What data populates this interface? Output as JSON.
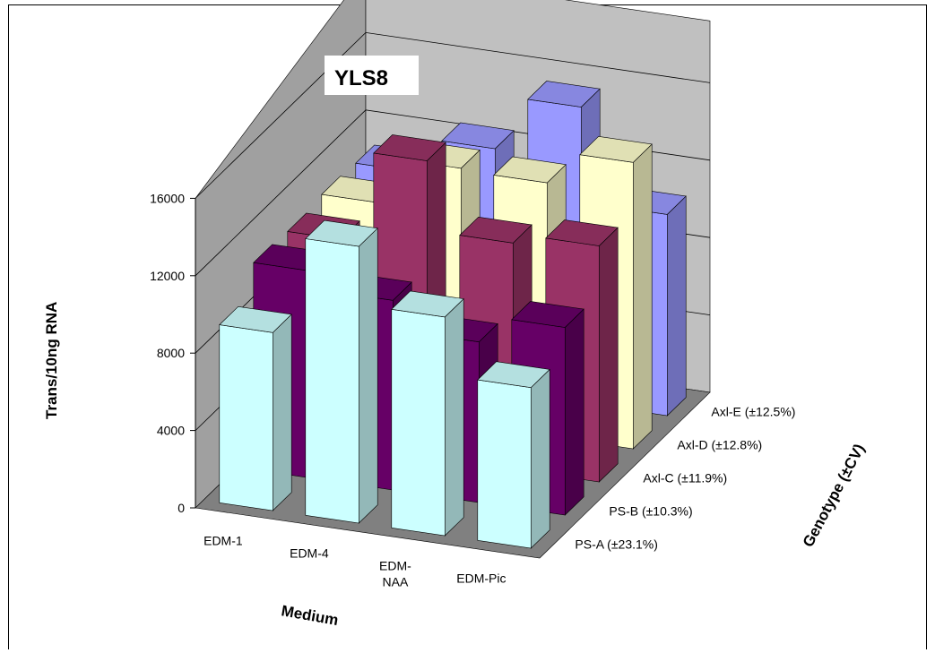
{
  "chart_data": {
    "type": "bar3d",
    "title": "YLS8",
    "ylabel": "Trans/10ng RNA",
    "xlabel": "Medium",
    "zlabel": "Genotype  (±CV)",
    "ylim": [
      0,
      16000
    ],
    "yticks": [
      "0",
      "4000",
      "8000",
      "12000",
      "16000"
    ],
    "categories": [
      "EDM-1",
      "EDM-4",
      "EDM-NAA",
      "EDM-Pic"
    ],
    "category_lines": [
      [
        "EDM-1"
      ],
      [
        "EDM-4"
      ],
      [
        "EDM-",
        "NAA"
      ],
      [
        "EDM-Pic"
      ]
    ],
    "series": [
      {
        "name": "PS-A (±23.1%)",
        "color": "#ccffff",
        "values": [
          9200,
          14300,
          11300,
          8300
        ]
      },
      {
        "name": "PS-B (±10.3%)",
        "color": "#660066",
        "values": [
          10700,
          9800,
          8300,
          9700
        ]
      },
      {
        "name": "Axl-C (±11.9%)",
        "color": "#993366",
        "values": [
          10600,
          15300,
          11700,
          12200
        ]
      },
      {
        "name": "Axl-D (±12.8%)",
        "color": "#ffffcc",
        "values": [
          10800,
          13200,
          13100,
          14800
        ]
      },
      {
        "name": "Axl-E (±12.5%)",
        "color": "#9999ff",
        "values": [
          10700,
          12500,
          15300,
          10400
        ]
      }
    ]
  }
}
